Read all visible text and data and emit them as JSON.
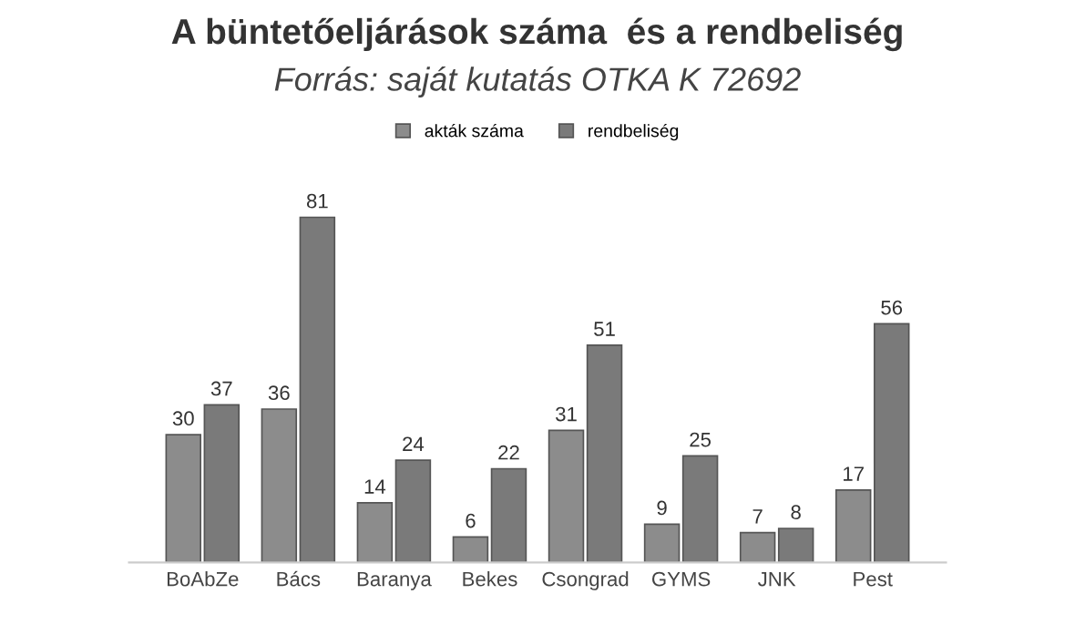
{
  "chart_data": {
    "type": "bar",
    "title": "A büntetőeljárások száma  és a rendbeliség",
    "subtitle": "Forrás: saját kutatás OTKA K 72692",
    "categories": [
      "BoAbZe",
      "Bács",
      "Baranya",
      "Bekes",
      "Csongrad",
      "GYMS",
      "JNK",
      "Pest"
    ],
    "series": [
      {
        "name": "akták száma",
        "color": "#8c8c8c",
        "values": [
          30,
          36,
          14,
          6,
          31,
          9,
          7,
          17
        ]
      },
      {
        "name": "rendbeliség",
        "color": "#7a7a7a",
        "values": [
          37,
          81,
          24,
          22,
          51,
          25,
          8,
          56
        ]
      }
    ],
    "data_labels": true,
    "legend": "top",
    "grid": false
  }
}
